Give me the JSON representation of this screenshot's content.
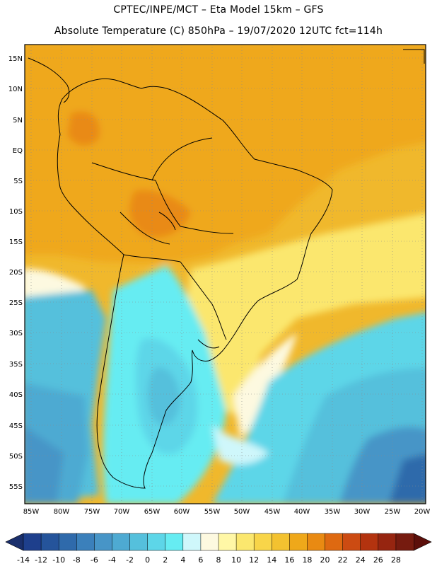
{
  "header": {
    "line1": "CPTEC/INPE/MCT –  Eta Model 15km – GFS",
    "line2": "Absolute Temperature (C) 850hPa – 19/07/2020 12UTC fct=114h"
  },
  "axes": {
    "lat_labels": [
      "15N",
      "10N",
      "5N",
      "EQ",
      "5S",
      "10S",
      "15S",
      "20S",
      "25S",
      "30S",
      "35S",
      "40S",
      "45S",
      "50S",
      "55S"
    ],
    "lon_labels": [
      "85W",
      "80W",
      "75W",
      "70W",
      "65W",
      "60W",
      "55W",
      "50W",
      "45W",
      "40W",
      "35W",
      "30W",
      "25W",
      "20W"
    ]
  },
  "colorbar": {
    "ticks": [
      "-14",
      "-12",
      "-10",
      "-8",
      "-6",
      "-4",
      "-2",
      "0",
      "2",
      "4",
      "6",
      "8",
      "10",
      "12",
      "14",
      "16",
      "18",
      "20",
      "22",
      "24",
      "26",
      "28"
    ],
    "colors": [
      "#1e3f8c",
      "#25549b",
      "#2f6aab",
      "#3b80bb",
      "#4795c7",
      "#4eaad2",
      "#55c0dc",
      "#5dd6e8",
      "#66ecf2",
      "#cff7fb",
      "#fdf9e0",
      "#fff7a6",
      "#fbe76e",
      "#f8d549",
      "#f3c230",
      "#efa81a",
      "#e98a12",
      "#de6911",
      "#cc4b12",
      "#b3330f",
      "#962510",
      "#761b0f"
    ],
    "low_arrow_color": "#1a2f6c",
    "high_arrow_color": "#5c0f0a"
  },
  "chart_data": {
    "type": "heatmap",
    "title": "Absolute Temperature (C) 850hPa – 19/07/2020 12UTC fct=114h",
    "subtitle": "CPTEC/INPE/MCT – Eta Model 15km – GFS",
    "variable": "Absolute Temperature",
    "units": "C",
    "level": "850hPa",
    "lon_range": [
      -85,
      -20
    ],
    "lat_range": [
      -57,
      16
    ],
    "scale_min": -14,
    "scale_max": 28,
    "scale_step": 2,
    "regions": [
      {
        "area": "northern South America / tropical Atlantic",
        "approx_temp_c": 18
      },
      {
        "area": "Bolivian lowlands / Paraguay",
        "approx_temp_c": 22
      },
      {
        "area": "southeast Brazil coast",
        "approx_temp_c": 14
      },
      {
        "area": "Argentina / Uruguay",
        "approx_temp_c": 2
      },
      {
        "area": "Patagonia",
        "approx_temp_c": 0
      },
      {
        "area": "southern Pacific",
        "approx_temp_c": -4
      },
      {
        "area": "far southern Atlantic",
        "approx_temp_c": -8
      }
    ]
  }
}
